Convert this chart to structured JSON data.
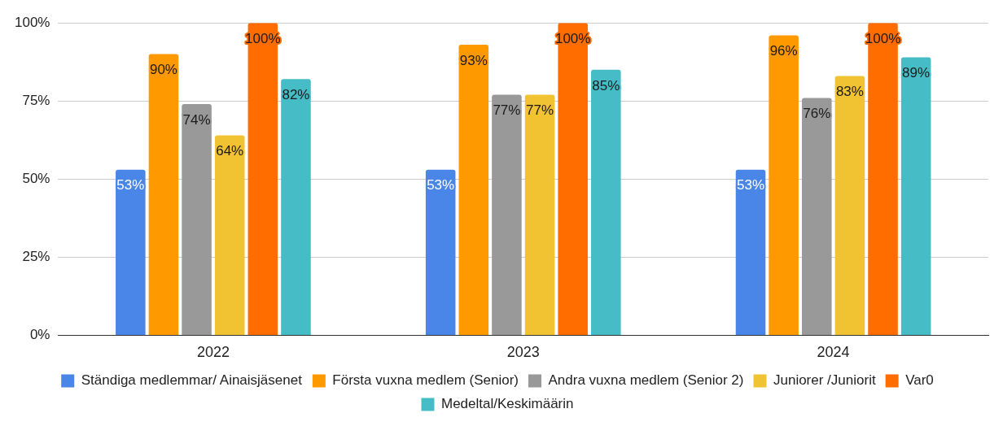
{
  "chart_data": {
    "type": "bar",
    "categories": [
      "2022",
      "2023",
      "2024"
    ],
    "series": [
      {
        "name": "Ständiga medlemmar/ Ainaisjäsenet",
        "color": "#4a86e8",
        "values": [
          53,
          53,
          53
        ],
        "value_labels": [
          "53%",
          "53%",
          "53%"
        ]
      },
      {
        "name": "Första vuxna medlem (Senior)",
        "color": "#ff9900",
        "values": [
          90,
          93,
          96
        ],
        "value_labels": [
          "90%",
          "93%",
          "96%"
        ]
      },
      {
        "name": "Andra vuxna medlem (Senior 2)",
        "color": "#999999",
        "values": [
          74,
          77,
          76
        ],
        "value_labels": [
          "74%",
          "77%",
          "76%"
        ]
      },
      {
        "name": "Juniorer /Juniorit",
        "color": "#f1c232",
        "values": [
          64,
          77,
          83
        ],
        "value_labels": [
          "64%",
          "77%",
          "83%"
        ]
      },
      {
        "name": "Var0",
        "color": "#ff6d01",
        "values": [
          100,
          100,
          100
        ],
        "value_labels": [
          "100%",
          "100%",
          "100%"
        ]
      },
      {
        "name": "Medeltal/Keskimäärin",
        "color": "#46bdc6",
        "values": [
          82,
          85,
          89
        ],
        "value_labels": [
          "82%",
          "85%",
          "89%"
        ]
      }
    ],
    "ylim": [
      0,
      100
    ],
    "yticks": [
      {
        "value": 0,
        "label": "0%"
      },
      {
        "value": 25,
        "label": "25%"
      },
      {
        "value": 50,
        "label": "50%"
      },
      {
        "value": 75,
        "label": "75%"
      },
      {
        "value": 100,
        "label": "100%"
      }
    ],
    "grid": "y",
    "legend": "bottom"
  }
}
